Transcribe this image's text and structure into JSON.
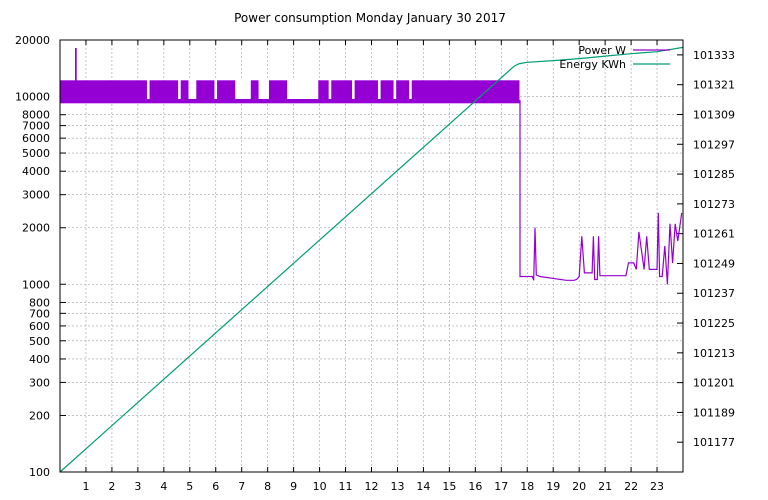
{
  "chart_data": {
    "type": "line",
    "title": "Power consumption Monday January 30 2017",
    "xlabel": "",
    "ylabel": "",
    "y2label": "",
    "x_ticks": [
      1,
      2,
      3,
      4,
      5,
      6,
      7,
      8,
      9,
      10,
      11,
      12,
      13,
      14,
      15,
      16,
      17,
      18,
      19,
      20,
      21,
      22,
      23
    ],
    "xlim": [
      0,
      24
    ],
    "y_left": {
      "scale": "log",
      "range": [
        100,
        20000
      ],
      "ticks": [
        100,
        200,
        300,
        400,
        500,
        600,
        700,
        800,
        1000,
        2000,
        3000,
        4000,
        5000,
        6000,
        7000,
        8000,
        10000,
        20000
      ]
    },
    "y_right": {
      "scale": "linear",
      "range": [
        101165,
        101339
      ],
      "ticks": [
        101177,
        101189,
        101201,
        101213,
        101225,
        101237,
        101249,
        101261,
        101273,
        101285,
        101297,
        101309,
        101321,
        101333
      ]
    },
    "grid": true,
    "legend_position": "top-right",
    "series": [
      {
        "name": "Power W",
        "axis": "left",
        "color": "#9400d3",
        "band": {
          "x_start": 0.0,
          "x_end": 17.7,
          "low": 9200,
          "high": 12200
        },
        "gaps": [
          [
            3.35,
            3.45
          ],
          [
            4.55,
            4.65
          ],
          [
            4.95,
            5.25
          ],
          [
            5.95,
            6.05
          ],
          [
            6.75,
            7.35
          ],
          [
            7.65,
            8.05
          ],
          [
            8.75,
            9.95
          ],
          [
            10.35,
            10.45
          ],
          [
            11.25,
            11.35
          ],
          [
            12.25,
            12.35
          ],
          [
            12.85,
            12.95
          ],
          [
            13.45,
            13.55
          ]
        ],
        "x": [
          0.0,
          0.6,
          0.6,
          0.62,
          0.62,
          17.7,
          17.72,
          17.72,
          18.2,
          18.25,
          18.3,
          18.35,
          18.5,
          19.5,
          19.8,
          19.9,
          20.0,
          20.1,
          20.2,
          20.5,
          20.55,
          20.6,
          20.7,
          20.75,
          20.8,
          21.0,
          21.8,
          21.9,
          22.1,
          22.2,
          22.3,
          22.5,
          22.6,
          22.7,
          22.8,
          23.0,
          23.05,
          23.1,
          23.2,
          23.3,
          23.4,
          23.5,
          23.6,
          23.7,
          23.8,
          23.95
        ],
        "y": [
          9500,
          9500,
          18000,
          18000,
          9500,
          9500,
          9500,
          1100,
          1100,
          1050,
          2000,
          1120,
          1100,
          1050,
          1050,
          1060,
          1100,
          1800,
          1150,
          1150,
          1800,
          1060,
          1060,
          1800,
          1110,
          1110,
          1110,
          1300,
          1300,
          1200,
          1900,
          1200,
          1800,
          1200,
          1200,
          1200,
          2400,
          1100,
          1100,
          1600,
          1000,
          2100,
          1300,
          2100,
          1700,
          2400
        ]
      },
      {
        "name": "Energy KWh",
        "axis": "right",
        "color": "#009e73",
        "x": [
          0.0,
          17.5,
          17.7,
          18.0,
          19.0,
          20.0,
          21.0,
          22.0,
          23.0,
          24.0
        ],
        "y": [
          101165,
          101328.5,
          101329.5,
          101330,
          101330.7,
          101331.5,
          101332.5,
          101333.5,
          101334.3,
          101336
        ]
      }
    ]
  }
}
